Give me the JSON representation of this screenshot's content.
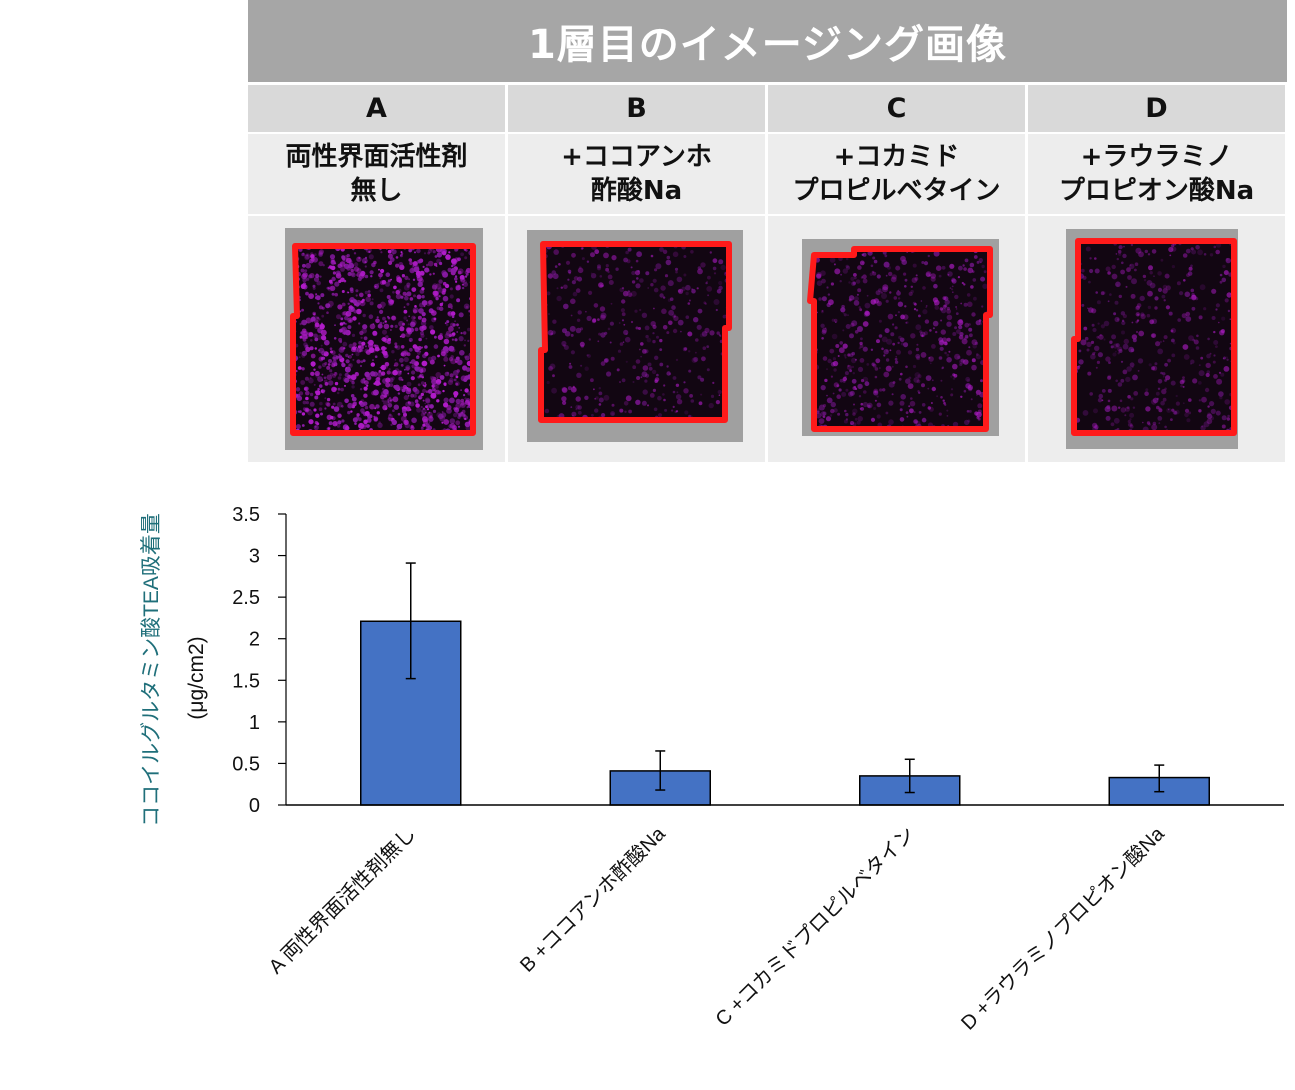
{
  "panel": {
    "title": "1層目のイメージング画像",
    "columns": [
      {
        "letter": "A",
        "label": "両性界面活性剤\n無し",
        "intensity": 0.62
      },
      {
        "letter": "B",
        "label": "+ココアンホ\n酢酸Na",
        "intensity": 0.14
      },
      {
        "letter": "C",
        "label": "+コカミド\nプロピルベタイン",
        "intensity": 0.2
      },
      {
        "letter": "D",
        "label": "+ラウラミノ\nプロピオン酸Na",
        "intensity": 0.12
      }
    ]
  },
  "chart_data": {
    "type": "bar",
    "categories": [
      "A 両性界面活性剤無し",
      "B +ココアンホ酢酸Na",
      "C +コカミドプロピルベタイン",
      "D +ラウラミノプロピオン酸Na"
    ],
    "values": [
      2.21,
      0.41,
      0.35,
      0.33
    ],
    "error_low": [
      1.52,
      0.18,
      0.15,
      0.16
    ],
    "error_high": [
      2.91,
      0.65,
      0.55,
      0.48
    ],
    "ylim": [
      0,
      3.5
    ],
    "yticks": [
      "0",
      "0.5",
      "1",
      "1.5",
      "2",
      "2.5",
      "3",
      "3.5"
    ],
    "ylabel": "ココイルグルタミン酸TEA吸着量",
    "ylabel_unit": "(μg/cm2)",
    "bar_color": "#4472c4",
    "ylabel_color": "#1f6f7a",
    "grid": false
  }
}
